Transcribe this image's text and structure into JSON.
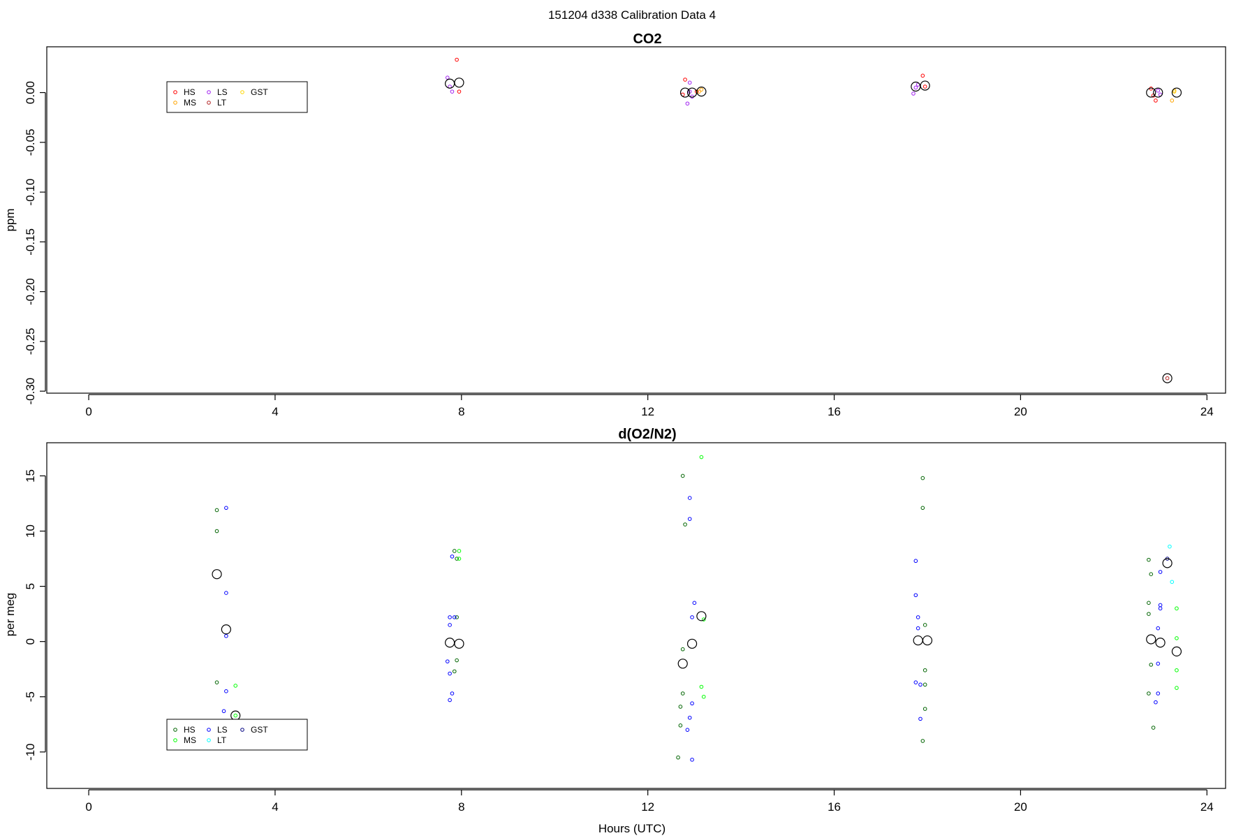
{
  "figure": {
    "title": "151204   d338   Calibration Data 4",
    "xlabel": "Hours (UTC)"
  },
  "chart_data": [
    {
      "type": "scatter",
      "title": "CO2",
      "xlabel": "",
      "ylabel": "ppm",
      "xlim": [
        -0.9,
        24.4
      ],
      "ylim": [
        -0.302,
        0.046
      ],
      "xticks": [
        0,
        4,
        8,
        12,
        16,
        20,
        24
      ],
      "yticks": [
        0.0,
        -0.05,
        -0.1,
        -0.15,
        -0.2,
        -0.25,
        -0.3
      ],
      "ytick_labels": [
        "0.00",
        "-0.05",
        "-0.10",
        "-0.15",
        "-0.20",
        "-0.25",
        "-0.30"
      ],
      "grid": false,
      "legend": {
        "placement": "top-left",
        "entries": [
          {
            "label": "HS",
            "color": "#ff0000"
          },
          {
            "label": "MS",
            "color": "#ffa500"
          },
          {
            "label": "LS",
            "color": "#a020f0"
          },
          {
            "label": "LT",
            "color": "#b22222"
          },
          {
            "label": "GST",
            "color": "#ffd700"
          }
        ]
      },
      "series": [
        {
          "name": "HS",
          "color": "#ff0000",
          "x": [
            7.9,
            7.95,
            12.8,
            12.75,
            13.05,
            17.9,
            17.95,
            22.8,
            22.85,
            22.9
          ],
          "y": [
            0.033,
            0.001,
            0.013,
            -0.002,
            0.001,
            0.017,
            0.006,
            0.004,
            -0.003,
            -0.008
          ]
        },
        {
          "name": "MS",
          "color": "#ffa500",
          "x": [
            13.1,
            13.15,
            23.25,
            23.3
          ],
          "y": [
            0.001,
            0.003,
            -0.008,
            0.002
          ]
        },
        {
          "name": "LS",
          "color": "#a020f0",
          "x": [
            7.7,
            7.75,
            7.8,
            12.9,
            12.95,
            12.85,
            12.9,
            17.7,
            17.75,
            17.8,
            22.95,
            23.0
          ],
          "y": [
            0.015,
            0.006,
            0.001,
            0.01,
            -0.004,
            -0.011,
            0.001,
            -0.001,
            0.005,
            0.008,
            0.002,
            -0.002
          ]
        },
        {
          "name": "LT",
          "color": "#b22222",
          "x": [
            23.15
          ],
          "y": [
            -0.287
          ]
        },
        {
          "name": "GST",
          "color": "#ffd700",
          "x": [
            23.3
          ],
          "y": [
            0.001
          ]
        }
      ],
      "means": {
        "x": [
          7.75,
          7.95,
          12.8,
          12.95,
          13.15,
          17.75,
          17.95,
          22.8,
          22.95,
          23.15,
          23.35
        ],
        "y": [
          0.009,
          0.01,
          0.0,
          0.0,
          0.001,
          0.006,
          0.007,
          0.0,
          0.0,
          -0.287,
          0.0
        ]
      }
    },
    {
      "type": "scatter",
      "title": "d(O2/N2)",
      "xlabel": "Hours (UTC)",
      "ylabel": "per meg",
      "xlim": [
        -0.9,
        24.4
      ],
      "ylim": [
        -13.3,
        18.0
      ],
      "xticks": [
        0,
        4,
        8,
        12,
        16,
        20,
        24
      ],
      "yticks": [
        15,
        10,
        5,
        0,
        -5,
        -10
      ],
      "ytick_labels": [
        "15",
        "10",
        "5",
        "0",
        "-5",
        "-10"
      ],
      "grid": false,
      "legend": {
        "placement": "bottom-left",
        "entries": [
          {
            "label": "HS",
            "color": "#006400"
          },
          {
            "label": "MS",
            "color": "#00ff00"
          },
          {
            "label": "LS",
            "color": "#0000ff"
          },
          {
            "label": "LT",
            "color": "#00ffff"
          },
          {
            "label": "GST",
            "color": "#000080"
          }
        ]
      },
      "series": [
        {
          "name": "HS",
          "color": "#006400",
          "x": [
            2.75,
            2.75,
            2.75,
            7.85,
            7.9,
            7.9,
            7.9,
            7.85,
            12.75,
            12.8,
            12.75,
            12.75,
            12.7,
            12.7,
            12.65,
            17.9,
            17.9,
            17.95,
            17.95,
            17.95,
            17.95,
            17.9,
            22.75,
            22.8,
            22.75,
            22.75,
            22.8,
            22.75,
            22.85
          ],
          "y": [
            11.9,
            10.0,
            -3.7,
            8.2,
            7.5,
            2.2,
            -1.7,
            -2.7,
            15.0,
            10.6,
            -0.7,
            -4.7,
            -5.9,
            -7.6,
            -10.5,
            14.8,
            12.1,
            1.5,
            -2.6,
            -3.9,
            -6.1,
            -9.0,
            7.4,
            6.1,
            3.5,
            2.5,
            -2.1,
            -4.7,
            -7.8
          ]
        },
        {
          "name": "MS",
          "color": "#00ff00",
          "x": [
            3.15,
            3.15,
            7.95,
            7.95,
            13.15,
            13.2,
            13.15,
            13.2,
            23.35,
            23.35,
            23.35,
            23.35
          ],
          "y": [
            -4.0,
            -6.7,
            8.2,
            7.5,
            16.7,
            2.0,
            -4.1,
            -5.0,
            3.0,
            0.3,
            -2.6,
            -4.2
          ]
        },
        {
          "name": "LS",
          "color": "#0000ff",
          "x": [
            2.95,
            2.95,
            2.95,
            2.95,
            2.9,
            7.8,
            7.75,
            7.85,
            7.7,
            7.75,
            7.75,
            7.8,
            7.75,
            12.9,
            12.9,
            13.0,
            12.95,
            12.95,
            12.9,
            12.85,
            12.95,
            17.75,
            17.75,
            17.8,
            17.8,
            17.75,
            17.85,
            17.85,
            23.0,
            23.0,
            22.95,
            23.0,
            22.95,
            22.95,
            22.9
          ],
          "y": [
            12.1,
            4.4,
            0.5,
            -4.5,
            -6.3,
            7.7,
            2.2,
            2.2,
            -1.8,
            1.5,
            -2.9,
            -4.7,
            -5.3,
            13.0,
            11.1,
            3.5,
            2.2,
            -5.6,
            -6.9,
            -8.0,
            -10.7,
            7.3,
            4.2,
            2.2,
            1.2,
            -3.7,
            -3.9,
            -7.0,
            6.3,
            3.3,
            1.2,
            3.0,
            -2.0,
            -4.7,
            -5.5
          ]
        },
        {
          "name": "LT",
          "color": "#00ffff",
          "x": [
            23.2,
            23.25
          ],
          "y": [
            8.6,
            5.4
          ]
        },
        {
          "name": "GST",
          "color": "#000080",
          "x": [
            23.15
          ],
          "y": [
            7.5
          ]
        }
      ],
      "means": {
        "x": [
          2.75,
          2.95,
          3.15,
          7.75,
          7.95,
          12.75,
          12.95,
          13.15,
          17.8,
          18.0,
          22.8,
          23.0,
          23.15,
          23.35
        ],
        "y": [
          6.1,
          1.1,
          -6.7,
          -0.1,
          -0.2,
          -2.0,
          -0.2,
          2.3,
          0.1,
          0.1,
          0.2,
          -0.1,
          7.1,
          -0.9
        ]
      }
    }
  ]
}
